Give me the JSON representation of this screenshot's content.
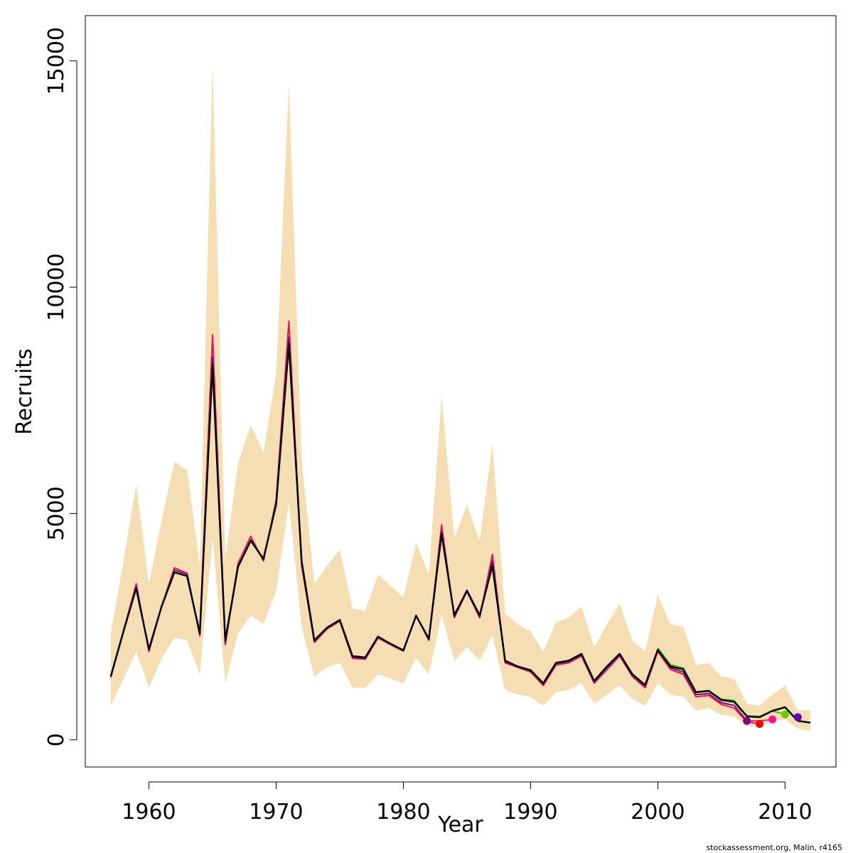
{
  "chart_data": {
    "type": "line",
    "xlabel": "Year",
    "ylabel": "Recruits",
    "xlim": [
      1955,
      2014
    ],
    "ylim": [
      -600,
      16000
    ],
    "x_ticks": [
      1960,
      1970,
      1980,
      1990,
      2000,
      2010
    ],
    "y_ticks": [
      0,
      5000,
      10000,
      15000
    ],
    "band_color": "#F5DEB3",
    "grid": false,
    "legend": "none",
    "band": {
      "x": [
        1957,
        1958,
        1959,
        1960,
        1961,
        1962,
        1963,
        1964,
        1965,
        1966,
        1967,
        1968,
        1969,
        1970,
        1971,
        1972,
        1973,
        1974,
        1975,
        1976,
        1977,
        1978,
        1979,
        1980,
        1981,
        1982,
        1983,
        1984,
        1985,
        1986,
        1987,
        1988,
        1989,
        1990,
        1991,
        1992,
        1993,
        1994,
        1995,
        1996,
        1997,
        1998,
        1999,
        2000,
        2001,
        2002,
        2003,
        2004,
        2005,
        2006,
        2007,
        2008,
        2009,
        2010,
        2011,
        2012
      ],
      "upper": [
        2350,
        3950,
        5650,
        3450,
        4850,
        6150,
        5950,
        3850,
        14950,
        4000,
        6100,
        6950,
        6350,
        8100,
        14500,
        6200,
        3450,
        3850,
        4200,
        2900,
        2850,
        3650,
        3400,
        3150,
        4350,
        3650,
        7600,
        4450,
        5200,
        4400,
        6550,
        2800,
        2550,
        2400,
        1950,
        2600,
        2700,
        2950,
        2050,
        2550,
        3000,
        2200,
        1950,
        3200,
        2550,
        2500,
        1650,
        1700,
        1400,
        1350,
        800,
        750,
        1000,
        1200,
        650,
        650
      ],
      "lower": [
        750,
        1350,
        1950,
        1150,
        1800,
        2250,
        2200,
        1450,
        4450,
        1250,
        2350,
        2750,
        2550,
        3300,
        5250,
        2500,
        1400,
        1600,
        1700,
        1150,
        1150,
        1450,
        1350,
        1250,
        1800,
        1450,
        2750,
        1750,
        2050,
        1750,
        2300,
        1100,
        1000,
        950,
        750,
        1050,
        1100,
        1250,
        800,
        1000,
        1200,
        900,
        750,
        1250,
        1000,
        950,
        650,
        700,
        550,
        520,
        300,
        300,
        400,
        450,
        250,
        200
      ]
    },
    "series": [
      {
        "color": "#D81B60",
        "x": [
          1957,
          1958,
          1959,
          1960,
          1961,
          1962,
          1963,
          1964,
          1965,
          1966,
          1967,
          1968,
          1969,
          1970,
          1971,
          1972,
          1973,
          1974,
          1975,
          1976,
          1977,
          1978,
          1979,
          1980,
          1981,
          1982,
          1983,
          1984,
          1985,
          1986,
          1987,
          1988,
          1989,
          1990,
          1991,
          1992,
          1993,
          1994,
          1995,
          1996,
          1997,
          1998,
          1999,
          2000,
          2001,
          2002,
          2003,
          2004,
          2005,
          2006,
          2007,
          2008
        ],
        "values": [
          1380,
          2400,
          3450,
          1950,
          2950,
          3800,
          3680,
          2300,
          8950,
          2100,
          3900,
          4500,
          3950,
          5300,
          9250,
          3850,
          2150,
          2450,
          2620,
          1800,
          1780,
          2250,
          2100,
          1960,
          2750,
          2200,
          4750,
          2700,
          3280,
          2700,
          4100,
          1700,
          1600,
          1500,
          1200,
          1650,
          1700,
          1850,
          1250,
          1550,
          1850,
          1400,
          1150,
          1950,
          1550,
          1450,
          950,
          980,
          780,
          700,
          400,
          350
        ],
        "end_point": [
          2008,
          350
        ],
        "end_color": "#FF0000"
      },
      {
        "color": "#FF1493",
        "x": [
          2007,
          2008,
          2009
        ],
        "values": [
          420,
          420,
          450
        ],
        "end_point": [
          2009,
          450
        ],
        "end_color": "#FF1493"
      },
      {
        "color": "#800080",
        "x": [
          1957,
          1958,
          1959,
          1960,
          1961,
          1962,
          1963,
          1964,
          1965,
          1966,
          1967,
          1968,
          1969,
          1970,
          1971,
          1972,
          1973,
          1974,
          1975,
          1976,
          1977,
          1978,
          1979,
          1980,
          1981,
          1982,
          1983,
          1984,
          1985,
          1986,
          1987,
          1988,
          1989,
          1990,
          1991,
          1992,
          1993,
          1994,
          1995,
          1996,
          1997,
          1998,
          1999,
          2000,
          2001,
          2002,
          2003,
          2004,
          2005,
          2006,
          2007
        ],
        "values": [
          1390,
          2380,
          3380,
          1980,
          2950,
          3750,
          3660,
          2330,
          8450,
          2150,
          3820,
          4420,
          3980,
          5220,
          8900,
          3900,
          2180,
          2470,
          2650,
          1820,
          1800,
          2270,
          2110,
          1970,
          2750,
          2210,
          4600,
          2720,
          3280,
          2720,
          3950,
          1720,
          1610,
          1520,
          1230,
          1680,
          1730,
          1880,
          1280,
          1590,
          1880,
          1420,
          1190,
          1980,
          1590,
          1500,
          1000,
          1020,
          820,
          760,
          420
        ],
        "end_point": [
          2007,
          420
        ],
        "end_color": "#800080"
      },
      {
        "color": "#33CC00",
        "x": [
          2000,
          2001,
          2002,
          2003,
          2004,
          2005,
          2006,
          2007,
          2008,
          2009,
          2010
        ],
        "values": [
          2030,
          1660,
          1590,
          1060,
          1090,
          900,
          870,
          530,
          520,
          640,
          560
        ],
        "end_point": [
          2010,
          560
        ],
        "end_color": "#66CC00"
      },
      {
        "color": "#000000",
        "x": [
          1957,
          1958,
          1959,
          1960,
          1961,
          1962,
          1963,
          1964,
          1965,
          1966,
          1967,
          1968,
          1969,
          1970,
          1971,
          1972,
          1973,
          1974,
          1975,
          1976,
          1977,
          1978,
          1979,
          1980,
          1981,
          1982,
          1983,
          1984,
          1985,
          1986,
          1987,
          1988,
          1989,
          1990,
          1991,
          1992,
          1993,
          1994,
          1995,
          1996,
          1997,
          1998,
          1999,
          2000,
          2001,
          2002,
          2003,
          2004,
          2005,
          2006,
          2007,
          2008,
          2009,
          2010,
          2011,
          2012
        ],
        "values": [
          1400,
          2400,
          3350,
          2000,
          2950,
          3700,
          3620,
          2350,
          8300,
          2200,
          3820,
          4400,
          4000,
          5200,
          8750,
          3950,
          2200,
          2480,
          2650,
          1850,
          1820,
          2280,
          2120,
          1980,
          2740,
          2230,
          4550,
          2750,
          3300,
          2750,
          3850,
          1750,
          1620,
          1540,
          1250,
          1700,
          1750,
          1900,
          1300,
          1620,
          1900,
          1450,
          1210,
          1990,
          1620,
          1560,
          1050,
          1080,
          880,
          840,
          520,
          500,
          640,
          720,
          420,
          380
        ]
      },
      {
        "color": "#660099",
        "x": [
          2011
        ],
        "values": [
          500
        ],
        "end_point": [
          2011,
          500
        ],
        "end_color": "#6600AA"
      }
    ]
  },
  "credit": "stockassessment.org, Malin, r4165"
}
